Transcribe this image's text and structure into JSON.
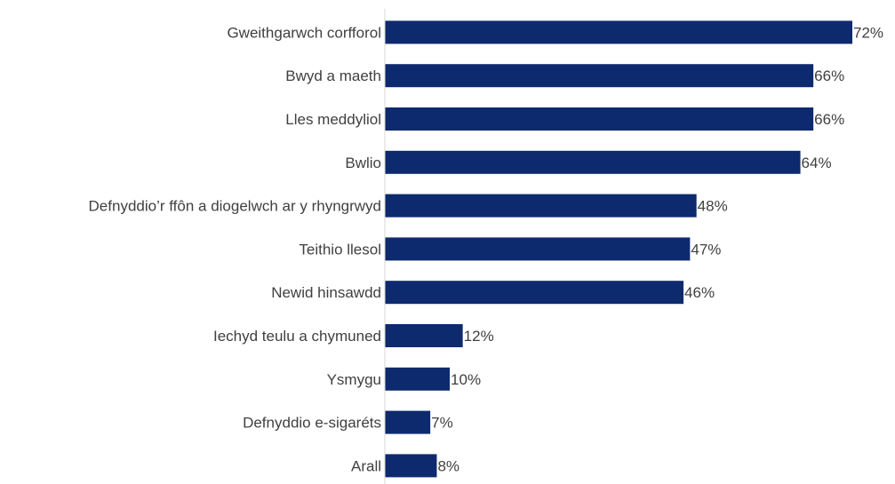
{
  "chart_data": {
    "type": "bar",
    "orientation": "horizontal",
    "categories": [
      "Gweithgarwch corfforol",
      "Bwyd a maeth",
      "Lles meddyliol",
      "Bwlio",
      "Defnyddio’r ffôn a diogelwch ar y rhyngrwyd",
      "Teithio llesol",
      "Newid hinsawdd",
      "Iechyd teulu a chymuned",
      "Ysmygu",
      "Defnyddio e-sigaréts",
      "Arall"
    ],
    "values": [
      72,
      66,
      66,
      64,
      48,
      47,
      46,
      12,
      10,
      7,
      8
    ],
    "value_labels": [
      "72%",
      "66%",
      "66%",
      "64%",
      "48%",
      "47%",
      "46%",
      "12%",
      "10%",
      "7%",
      "8%"
    ],
    "xlim": [
      0,
      72
    ],
    "grid": false,
    "legend": "none",
    "bar_color": "#0e2a6e",
    "axis_color": "#d9d9d9",
    "text_color": "#404040"
  }
}
